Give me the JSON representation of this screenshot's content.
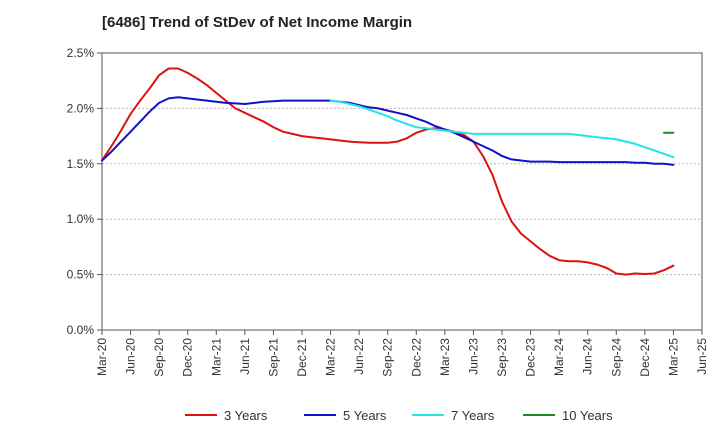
{
  "chart_data": {
    "type": "line",
    "title": "[6486]  Trend of StDev of Net Income Margin",
    "xlabel": "",
    "ylabel": "",
    "x_ticks": [
      "Mar-20",
      "Jun-20",
      "Sep-20",
      "Dec-20",
      "Mar-21",
      "Jun-21",
      "Sep-21",
      "Dec-21",
      "Mar-22",
      "Jun-22",
      "Sep-22",
      "Dec-22",
      "Mar-23",
      "Jun-23",
      "Sep-23",
      "Dec-23",
      "Mar-24",
      "Jun-24",
      "Sep-24",
      "Dec-24",
      "Mar-25",
      "Jun-25"
    ],
    "y_ticks": [
      "0.0%",
      "0.5%",
      "1.0%",
      "1.5%",
      "2.0%",
      "2.5%"
    ],
    "ylim": [
      0,
      2.5
    ],
    "y_unit": "%",
    "grid": "horizontal dashed",
    "legend_position": "bottom",
    "series": [
      {
        "name": "3 Years",
        "color": "#dd1111",
        "x": [
          "Mar-20",
          "Apr-20",
          "May-20",
          "Jun-20",
          "Jul-20",
          "Aug-20",
          "Sep-20",
          "Oct-20",
          "Nov-20",
          "Dec-20",
          "Jan-21",
          "Feb-21",
          "Mar-21",
          "Apr-21",
          "May-21",
          "Jun-21",
          "Jul-21",
          "Aug-21",
          "Sep-21",
          "Oct-21",
          "Nov-21",
          "Dec-21",
          "Jan-22",
          "Feb-22",
          "Mar-22",
          "Apr-22",
          "May-22",
          "Jun-22",
          "Jul-22",
          "Aug-22",
          "Sep-22",
          "Oct-22",
          "Nov-22",
          "Dec-22",
          "Jan-23",
          "Feb-23",
          "Mar-23",
          "Apr-23",
          "May-23",
          "Jun-23",
          "Jul-23",
          "Aug-23",
          "Sep-23",
          "Oct-23",
          "Nov-23",
          "Dec-23",
          "Jan-24",
          "Feb-24",
          "Mar-24",
          "Apr-24",
          "May-24",
          "Jun-24",
          "Jul-24",
          "Aug-24",
          "Sep-24",
          "Oct-24",
          "Nov-24",
          "Dec-24",
          "Jan-25",
          "Feb-25",
          "Mar-25"
        ],
        "values": [
          1.53,
          1.66,
          1.8,
          1.95,
          2.07,
          2.18,
          2.3,
          2.36,
          2.36,
          2.32,
          2.27,
          2.21,
          2.14,
          2.07,
          2.0,
          1.96,
          1.92,
          1.88,
          1.83,
          1.79,
          1.77,
          1.75,
          1.74,
          1.73,
          1.72,
          1.71,
          1.7,
          1.695,
          1.69,
          1.69,
          1.69,
          1.7,
          1.73,
          1.78,
          1.81,
          1.82,
          1.81,
          1.79,
          1.76,
          1.7,
          1.57,
          1.4,
          1.16,
          0.98,
          0.87,
          0.8,
          0.73,
          0.67,
          0.63,
          0.62,
          0.62,
          0.61,
          0.59,
          0.56,
          0.51,
          0.5,
          0.51,
          0.505,
          0.51,
          0.54,
          0.58
        ]
      },
      {
        "name": "5 Years",
        "color": "#1111cc",
        "x": [
          "Mar-20",
          "Apr-20",
          "May-20",
          "Jun-20",
          "Jul-20",
          "Aug-20",
          "Sep-20",
          "Oct-20",
          "Nov-20",
          "Dec-20",
          "Jan-21",
          "Feb-21",
          "Mar-21",
          "Apr-21",
          "May-21",
          "Jun-21",
          "Jul-21",
          "Aug-21",
          "Sep-21",
          "Oct-21",
          "Nov-21",
          "Dec-21",
          "Jan-22",
          "Feb-22",
          "Mar-22",
          "Apr-22",
          "May-22",
          "Jun-22",
          "Jul-22",
          "Aug-22",
          "Sep-22",
          "Oct-22",
          "Nov-22",
          "Dec-22",
          "Jan-23",
          "Feb-23",
          "Mar-23",
          "Apr-23",
          "May-23",
          "Jun-23",
          "Jul-23",
          "Aug-23",
          "Sep-23",
          "Oct-23",
          "Nov-23",
          "Dec-23",
          "Jan-24",
          "Feb-24",
          "Mar-24",
          "Apr-24",
          "May-24",
          "Jun-24",
          "Jul-24",
          "Aug-24",
          "Sep-24",
          "Oct-24",
          "Nov-24",
          "Dec-24",
          "Jan-25",
          "Feb-25",
          "Mar-25"
        ],
        "values": [
          1.53,
          1.61,
          1.7,
          1.79,
          1.88,
          1.97,
          2.05,
          2.09,
          2.1,
          2.09,
          2.08,
          2.07,
          2.06,
          2.05,
          2.045,
          2.04,
          2.05,
          2.06,
          2.065,
          2.07,
          2.07,
          2.07,
          2.07,
          2.07,
          2.07,
          2.06,
          2.05,
          2.03,
          2.01,
          2.0,
          1.98,
          1.96,
          1.94,
          1.91,
          1.88,
          1.84,
          1.81,
          1.78,
          1.74,
          1.7,
          1.66,
          1.62,
          1.57,
          1.54,
          1.53,
          1.52,
          1.52,
          1.52,
          1.515,
          1.515,
          1.515,
          1.515,
          1.515,
          1.515,
          1.515,
          1.515,
          1.51,
          1.51,
          1.5,
          1.5,
          1.49
        ]
      },
      {
        "name": "7 Years",
        "color": "#22e5e5",
        "x": [
          "Mar-22",
          "Apr-22",
          "May-22",
          "Jun-22",
          "Jul-22",
          "Aug-22",
          "Sep-22",
          "Oct-22",
          "Nov-22",
          "Dec-22",
          "Jan-23",
          "Feb-23",
          "Mar-23",
          "Apr-23",
          "May-23",
          "Jun-23",
          "Jul-23",
          "Aug-23",
          "Sep-23",
          "Oct-23",
          "Nov-23",
          "Dec-23",
          "Jan-24",
          "Feb-24",
          "Mar-24",
          "Apr-24",
          "May-24",
          "Jun-24",
          "Jul-24",
          "Aug-24",
          "Sep-24",
          "Oct-24",
          "Nov-24",
          "Dec-24",
          "Jan-25",
          "Feb-25",
          "Mar-25"
        ],
        "values": [
          2.07,
          2.06,
          2.04,
          2.02,
          1.99,
          1.96,
          1.93,
          1.89,
          1.86,
          1.83,
          1.82,
          1.81,
          1.8,
          1.79,
          1.78,
          1.77,
          1.77,
          1.77,
          1.77,
          1.77,
          1.77,
          1.77,
          1.77,
          1.77,
          1.77,
          1.77,
          1.76,
          1.75,
          1.74,
          1.73,
          1.72,
          1.7,
          1.68,
          1.65,
          1.62,
          1.59,
          1.56
        ]
      },
      {
        "name": "10 Years",
        "color": "#228822",
        "x": [
          "Feb-25",
          "Mar-25"
        ],
        "values": [
          1.78,
          1.78
        ]
      }
    ]
  }
}
